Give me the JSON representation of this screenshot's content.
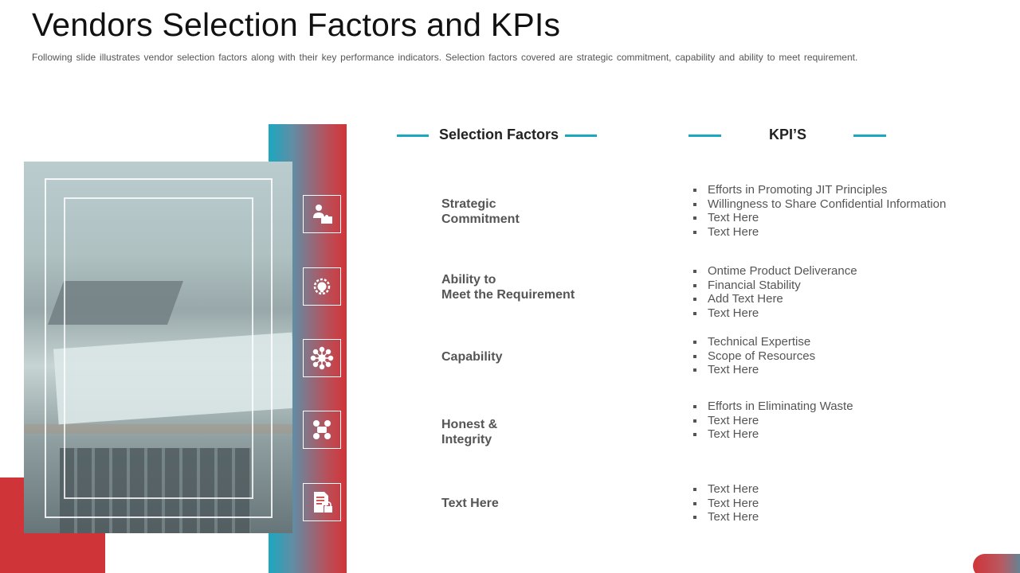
{
  "slide": {
    "title": "Vendors Selection Factors and KPIs",
    "subtitle": "Following slide illustrates vendor selection factors along with their key performance indicators. Selection factors covered are strategic commitment, capability and ability to meet requirement."
  },
  "headers": {
    "factors": "Selection Factors",
    "kpis": "KPI’S"
  },
  "colors": {
    "accent_teal": "#1aa8c0",
    "accent_red": "#cf3438"
  },
  "rows": [
    {
      "icon": "business-person-puzzle-icon",
      "factor_lines": [
        "Strategic",
        "Commitment"
      ],
      "kpis": [
        "Efforts in Promoting JIT Principles",
        "Willingness to Share Confidential Information",
        "Text Here",
        "Text Here"
      ]
    },
    {
      "icon": "lightbulb-gear-icon",
      "factor_lines": [
        "Ability to",
        "Meet the Requirement"
      ],
      "kpis": [
        "Ontime Product Deliverance",
        "Financial Stability",
        "Add Text Here",
        "Text Here"
      ]
    },
    {
      "icon": "network-people-icon",
      "factor_lines": [
        "Capability"
      ],
      "kpis": [
        "Technical Expertise",
        "Scope of Resources",
        "Text Here"
      ]
    },
    {
      "icon": "handshake-gears-icon",
      "factor_lines": [
        "Honest &",
        "Integrity"
      ],
      "kpis": [
        "Efforts in Eliminating Waste",
        "Text Here",
        "Text Here"
      ]
    },
    {
      "icon": "document-lock-icon",
      "factor_lines": [
        "Text Here"
      ],
      "kpis": [
        "Text Here",
        "Text Here",
        "Text Here"
      ]
    }
  ]
}
